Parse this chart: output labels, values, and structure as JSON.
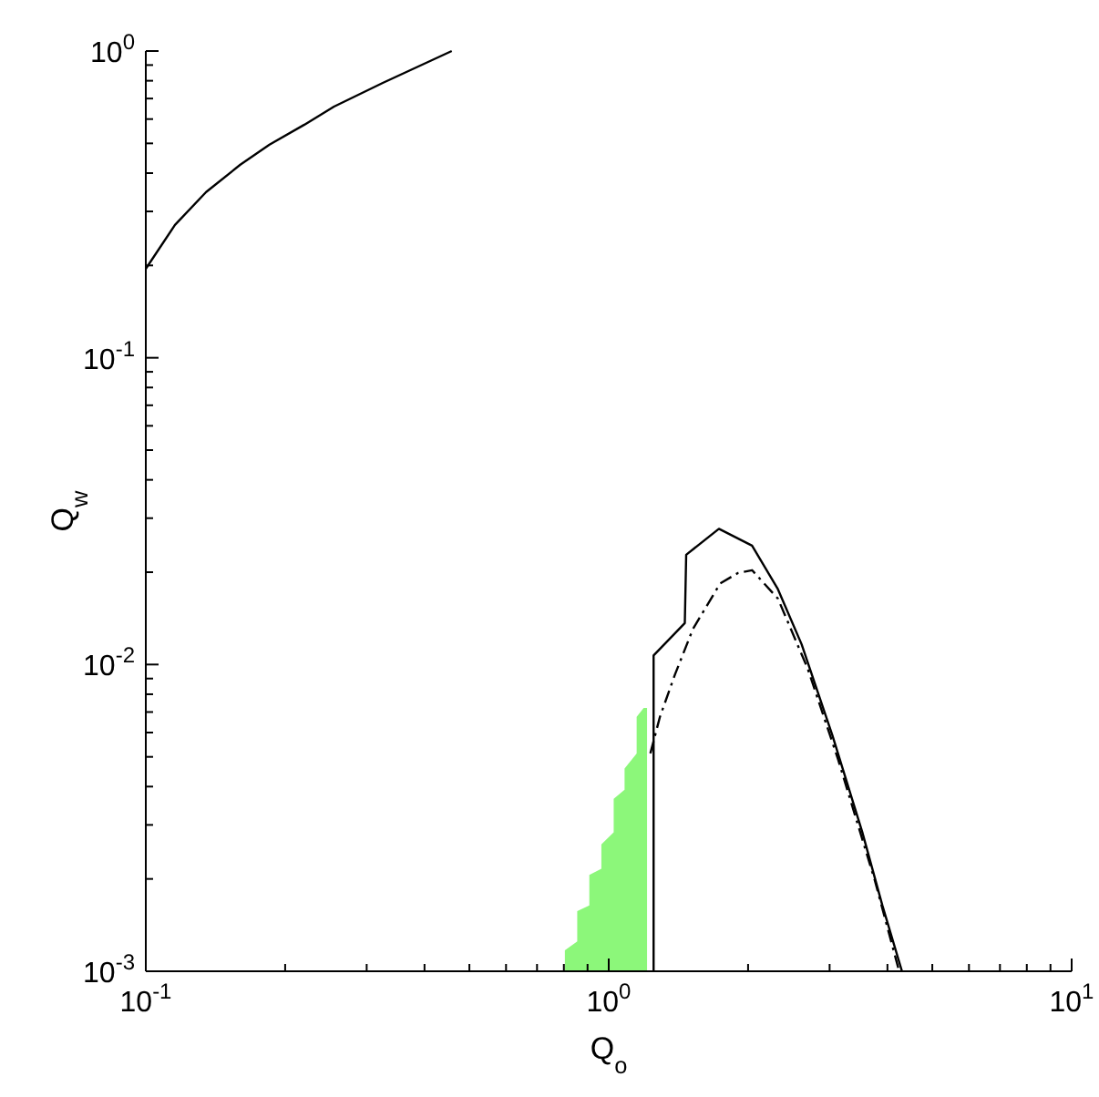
{
  "chart_data": {
    "type": "line",
    "log": "xy",
    "xlabel": "Q$_{o}$",
    "ylabel": "Q$_{w}$",
    "xlim": [
      0.1,
      10
    ],
    "ylim": [
      0.001,
      1
    ],
    "xticks": [
      {
        "value": 0.1,
        "label": "10$^{-1}$"
      },
      {
        "value": 0.2,
        "label": null
      },
      {
        "value": 0.3,
        "label": null
      },
      {
        "value": 0.4,
        "label": null
      },
      {
        "value": 0.5,
        "label": null
      },
      {
        "value": 0.6,
        "label": null
      },
      {
        "value": 0.7,
        "label": null
      },
      {
        "value": 0.8,
        "label": null
      },
      {
        "value": 0.9,
        "label": null
      },
      {
        "value": 1,
        "label": "10$^{0}$"
      },
      {
        "value": 2,
        "label": null
      },
      {
        "value": 3,
        "label": null
      },
      {
        "value": 4,
        "label": null
      },
      {
        "value": 5,
        "label": null
      },
      {
        "value": 6,
        "label": null
      },
      {
        "value": 7,
        "label": null
      },
      {
        "value": 8,
        "label": null
      },
      {
        "value": 9,
        "label": null
      },
      {
        "value": 10,
        "label": "10$^{1}$"
      }
    ],
    "yticks": [
      {
        "value": 0.001,
        "label": "10$^{-3}$"
      },
      {
        "value": 0.002,
        "label": null
      },
      {
        "value": 0.003,
        "label": null
      },
      {
        "value": 0.004,
        "label": null
      },
      {
        "value": 0.005,
        "label": null
      },
      {
        "value": 0.006,
        "label": null
      },
      {
        "value": 0.007,
        "label": null
      },
      {
        "value": 0.008,
        "label": null
      },
      {
        "value": 0.009,
        "label": null
      },
      {
        "value": 0.01,
        "label": "10$^{-2}$"
      },
      {
        "value": 0.02,
        "label": null
      },
      {
        "value": 0.03,
        "label": null
      },
      {
        "value": 0.04,
        "label": null
      },
      {
        "value": 0.05,
        "label": null
      },
      {
        "value": 0.06,
        "label": null
      },
      {
        "value": 0.07,
        "label": null
      },
      {
        "value": 0.08,
        "label": null
      },
      {
        "value": 0.09,
        "label": null
      },
      {
        "value": 0.1,
        "label": "10$^{-1}$"
      },
      {
        "value": 0.2,
        "label": null
      },
      {
        "value": 0.3,
        "label": null
      },
      {
        "value": 0.4,
        "label": null
      },
      {
        "value": 0.5,
        "label": null
      },
      {
        "value": 0.6,
        "label": null
      },
      {
        "value": 0.7,
        "label": null
      },
      {
        "value": 0.8,
        "label": null
      },
      {
        "value": 0.9,
        "label": null
      },
      {
        "value": 1,
        "label": "10$^{0}$"
      }
    ],
    "series": [
      {
        "type": "area",
        "color": "#8cf77a",
        "x": [
          0.804,
          0.804,
          0.855,
          0.855,
          0.908,
          0.908,
          0.964,
          0.964,
          1.025,
          1.025,
          1.082,
          1.082,
          1.149,
          1.149,
          1.19,
          1.21,
          1.21
        ],
        "values": [
          0.001,
          0.00117,
          0.00125,
          0.00157,
          0.00164,
          0.00206,
          0.00216,
          0.00259,
          0.00284,
          0.00365,
          0.00391,
          0.00458,
          0.00513,
          0.00675,
          0.00722,
          0.00722,
          0.001
        ]
      },
      {
        "color": "#000000",
        "line_style": "solid",
        "x": [
          0.1,
          0.1156,
          0.135,
          0.16,
          0.185,
          0.22,
          0.255,
          0.325,
          0.458
        ],
        "values": [
          0.195,
          0.271,
          0.347,
          0.426,
          0.495,
          0.575,
          0.659,
          0.787,
          1.0
        ]
      },
      {
        "color": "#000000",
        "line_style": "solid",
        "x": [
          1.25,
          1.25,
          1.46,
          1.47,
          1.73,
          2.04,
          2.32,
          2.61,
          3.04,
          3.53,
          3.9,
          4.3
        ],
        "values": [
          0.001,
          0.0107,
          0.01365,
          0.0228,
          0.0277,
          0.0244,
          0.0176,
          0.01164,
          0.00589,
          0.00284,
          0.00164,
          0.001
        ]
      },
      {
        "color": "#000000",
        "line_style": "dashdot",
        "x": [
          1.23,
          1.29,
          1.39,
          1.52,
          1.74,
          1.9,
          2.04,
          2.32,
          2.69,
          3.13,
          3.76,
          4.24
        ],
        "values": [
          0.00513,
          0.00675,
          0.00927,
          0.01305,
          0.01837,
          0.01986,
          0.0203,
          0.0164,
          0.0097,
          0.0049,
          0.00197,
          0.001
        ]
      }
    ]
  }
}
